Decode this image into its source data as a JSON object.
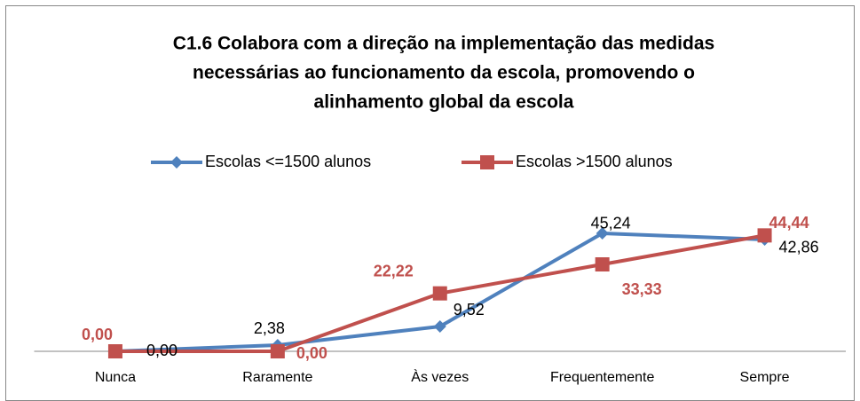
{
  "chart_data": {
    "type": "line",
    "title": [
      "C1.6 Colabora com a direção na implementação das medidas",
      "necessárias ao funcionamento da escola, promovendo o",
      "alinhamento global da escola"
    ],
    "categories": [
      "Nunca",
      "Raramente",
      "Às vezes",
      "Frequentemente",
      "Sempre"
    ],
    "series": [
      {
        "name": "Escolas <=1500 alunos",
        "color": "#4f81bd",
        "marker": "diamond",
        "values": [
          0,
          2.38,
          9.52,
          45.24,
          42.86
        ],
        "value_labels": [
          "0,00",
          "2,38",
          "9,52",
          "45,24",
          "42,86"
        ]
      },
      {
        "name": "Escolas >1500 alunos",
        "color": "#c0504d",
        "marker": "square",
        "values": [
          0,
          0,
          22.22,
          33.33,
          44.44
        ],
        "value_labels": [
          "0,00",
          "0,00",
          "22,22",
          "33,33",
          "44,44"
        ]
      }
    ],
    "ylim": [
      0,
      50
    ],
    "legend": "top"
  }
}
